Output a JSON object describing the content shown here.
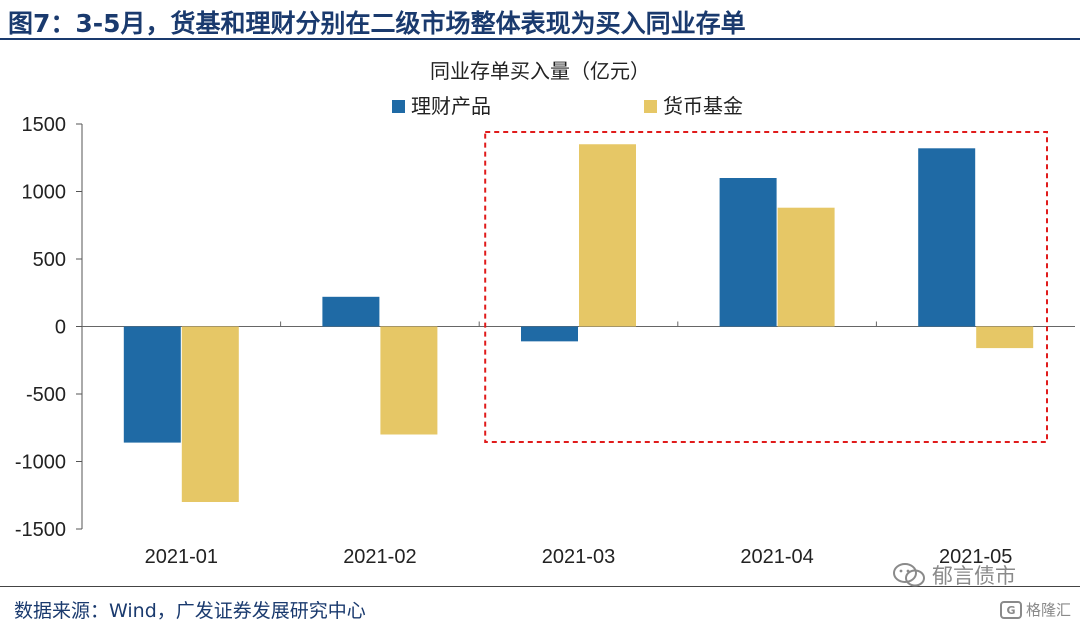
{
  "header": {
    "title": "图7：3-5月，货基和理财分别在二级市场整体表现为买入同业存单"
  },
  "footer": {
    "source": "数据来源：Wind，广发证券发展研究中心",
    "watermark_main": "郁言债市",
    "watermark_logo": "格隆汇"
  },
  "colors": {
    "series_wealth": "#1f6aa5",
    "series_mmf": "#e6c766",
    "highlight_box": "#e01b1b",
    "title": "#1a3a6e"
  },
  "chart_data": {
    "type": "bar",
    "title": "同业存单买入量（亿元）",
    "xlabel": "",
    "ylabel": "",
    "categories": [
      "2021-01",
      "2021-02",
      "2021-03",
      "2021-04",
      "2021-05"
    ],
    "series": [
      {
        "name": "理财产品",
        "values": [
          -860,
          220,
          -110,
          1100,
          1320
        ]
      },
      {
        "name": "货币基金",
        "values": [
          -1300,
          -800,
          1350,
          880,
          -160
        ]
      }
    ],
    "ylim": [
      -1500,
      1500
    ],
    "yticks": [
      1500,
      1000,
      500,
      0,
      -500,
      -1000,
      -1500
    ],
    "grid": false,
    "legend": "top-center",
    "highlight": [
      "2021-03",
      "2021-05"
    ]
  }
}
